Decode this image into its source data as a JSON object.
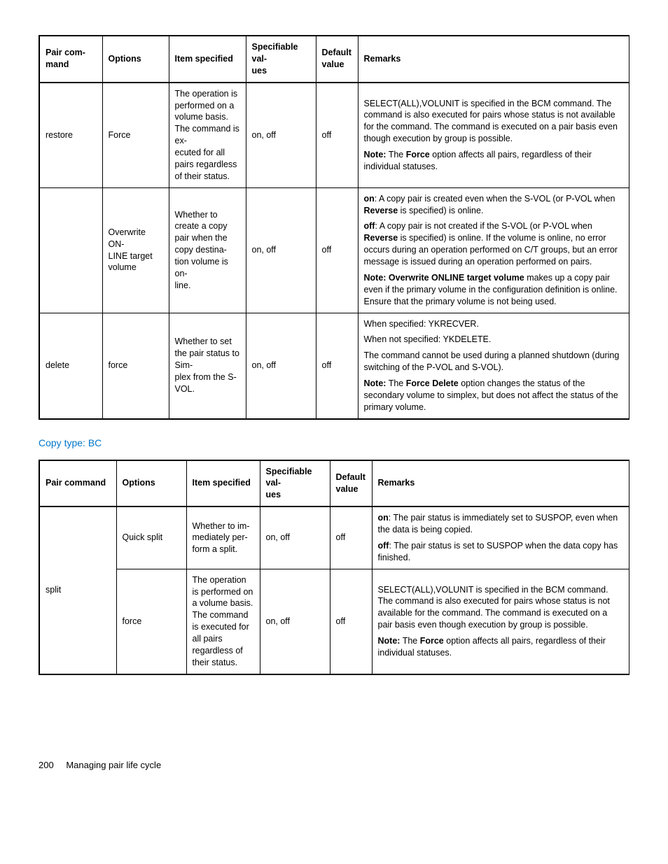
{
  "table1": {
    "columns": [
      "Pair com-\nmand",
      "Options",
      "Item specified",
      "Specifiable val-\nues",
      "Default\nvalue",
      "Remarks"
    ],
    "col_widths": [
      "90px",
      "95px",
      "110px",
      "100px",
      "60px",
      "auto"
    ],
    "rows": [
      {
        "cmd": "restore",
        "opt": "Force",
        "item": "The operation is performed on a volume basis. The command is ex-\necuted for all pairs regardless of their status.",
        "vals": "on, off",
        "def": "off",
        "remarks": [
          {
            "text": "SELECT(ALL),VOLUNIT is specified in the BCM command. The command is also executed for pairs whose status is not available for the command. The command is executed on a pair basis even though execution by group is possible."
          },
          {
            "prefix": "Note:",
            "text": " The ",
            "bold2": "Force",
            "text2": " option affects all pairs, regardless of their individual statuses."
          }
        ]
      },
      {
        "cmd": "",
        "opt": "Overwrite ON-\nLINE target volume",
        "item": "Whether to create a copy pair when the copy destina-\ntion volume is on-\nline.",
        "vals": "on, off",
        "def": "off",
        "remarks": [
          {
            "prefix": "on",
            "text": ": A copy pair is created even when the S-VOL (or P-VOL when ",
            "bold2": "Reverse",
            "text2": " is specified) is online."
          },
          {
            "prefix": "off",
            "text": ": A copy pair is not created if the S-VOL (or P-VOL when ",
            "bold2": "Reverse",
            "text2": " is specified) is online. If the volume is online, no error occurs during an operation performed on C/T groups, but an error message is issued during an operation performed on pairs."
          },
          {
            "prefix": "Note: Overwrite ONLINE target volume",
            "text": " makes up a copy pair even if the primary volume in the configuration definition is online. Ensure that the primary volume is not being used."
          }
        ]
      },
      {
        "cmd": "delete",
        "opt": "force",
        "item": "Whether to set the pair status to Sim-\nplex from the S-\nVOL.",
        "vals": "on, off",
        "def": "off",
        "remarks": [
          {
            "text": "When specified: YKRECVER."
          },
          {
            "text": "When not specified: YKDELETE."
          },
          {
            "text": "The command cannot be used during a planned shutdown (during switching of the P-VOL and S-VOL)."
          },
          {
            "prefix": "Note:",
            "text": " The ",
            "bold2": "Force Delete",
            "text2": " option changes the status of the secondary volume to simplex, but does not affect the status of the primary volume."
          }
        ]
      }
    ]
  },
  "heading2": "Copy type: BC",
  "table2": {
    "columns": [
      "Pair command",
      "Options",
      "Item specified",
      "Specifiable val-\nues",
      "Default\nvalue",
      "Remarks"
    ],
    "col_widths": [
      "110px",
      "100px",
      "105px",
      "100px",
      "60px",
      "auto"
    ],
    "rows": [
      {
        "cmd": "split",
        "cmd_rowspan": 2,
        "opt": "Quick split",
        "item": "Whether to im-\nmediately per-\nform a split.",
        "vals": "on, off",
        "def": "off",
        "remarks": [
          {
            "prefix": "on",
            "text": ": The pair status is immediately set to SUSPOP, even when the data is being copied."
          },
          {
            "prefix": "off",
            "text": ": The pair status is set to SUSPOP when the data copy has finished."
          }
        ]
      },
      {
        "cmd": null,
        "opt": "force",
        "item": "The operation is performed on a volume basis. The command is executed for all pairs regardless of their status.",
        "vals": "on, off",
        "def": "off",
        "remarks": [
          {
            "text": "SELECT(ALL),VOLUNIT is specified in the BCM command. The command is also executed for pairs whose status is not available for the command. The command is executed on a pair basis even though execution by group is possible."
          },
          {
            "prefix": "Note:",
            "text": " The ",
            "bold2": "Force",
            "text2": " option affects all pairs, regardless of their individual statuses."
          }
        ]
      }
    ]
  },
  "footer": {
    "page": "200",
    "title": "Managing pair life cycle"
  }
}
